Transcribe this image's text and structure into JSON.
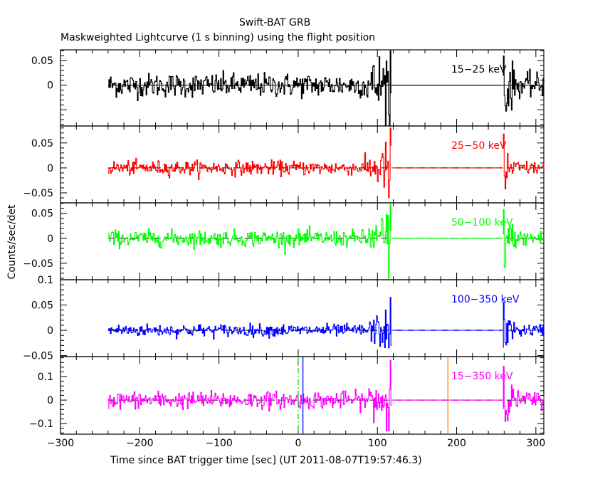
{
  "chart_data": {
    "type": "line",
    "title": "Swift-BAT GRB",
    "subtitle": "Maskweighted Lightcurve (1 s binning) using the flight position",
    "xlabel": "Time since BAT trigger time [sec] (UT 2011-08-07T19:57:46.3)",
    "ylabel": "Counts/sec/det",
    "xlim": [
      -300,
      310
    ],
    "x_ticks": [
      -300,
      -200,
      -100,
      0,
      100,
      200,
      300
    ],
    "x_tick_labels": [
      "−300",
      "−200",
      "−100",
      "0",
      "100",
      "200",
      "300"
    ],
    "grid": false,
    "data_segments": [
      {
        "start": -240,
        "end": 117
      },
      {
        "start": 258,
        "end": 310
      }
    ],
    "binning_sec": 1,
    "panels": [
      {
        "name": "15-25 keV",
        "label": "15−25 keV",
        "color": "#000000",
        "ylim": [
          -0.083,
          0.072
        ],
        "y_ticks": [
          0,
          0.05
        ],
        "y_tick_labels": [
          "0",
          "0.05"
        ],
        "noise_sigma": 0.012,
        "burst_peak": 0.07,
        "burst_min": -0.06
      },
      {
        "name": "25-50 keV",
        "label": "25−50 keV",
        "color": "#ff0000",
        "ylim": [
          -0.07,
          0.084
        ],
        "y_ticks": [
          -0.05,
          0,
          0.05
        ],
        "y_tick_labels": [
          "−0.05",
          "0",
          "0.05"
        ],
        "noise_sigma": 0.007,
        "burst_peak": 0.08,
        "burst_min": -0.06
      },
      {
        "name": "50-100 keV",
        "label": "50−100 keV",
        "color": "#00ff00",
        "ylim": [
          -0.083,
          0.071
        ],
        "y_ticks": [
          -0.05,
          0,
          0.05
        ],
        "y_tick_labels": [
          "−0.05",
          "0",
          "0.05"
        ],
        "noise_sigma": 0.008,
        "burst_peak": 0.068,
        "burst_min": -0.08
      },
      {
        "name": "100-350 keV",
        "label": "100−350 keV",
        "color": "#0000ff",
        "ylim": [
          -0.052,
          0.1
        ],
        "y_ticks": [
          -0.05,
          0,
          0.05,
          0.1
        ],
        "y_tick_labels": [
          "−0.05",
          "0",
          "0.05",
          "0.1"
        ],
        "noise_sigma": 0.006,
        "burst_peak": 0.065,
        "burst_min": -0.035
      },
      {
        "name": "15-350 keV",
        "label": "15−350 keV",
        "color": "#ff00ff",
        "ylim": [
          -0.145,
          0.185
        ],
        "y_ticks": [
          -0.1,
          0,
          0.1
        ],
        "y_tick_labels": [
          "−0.1",
          "0",
          "0.1"
        ],
        "noise_sigma": 0.018,
        "burst_peak": 0.17,
        "burst_min": -0.13
      }
    ],
    "markers": [
      {
        "name": "trigger-time",
        "x": 0,
        "color": "#00dd00",
        "style": "dash-dot"
      },
      {
        "name": "t-start",
        "x": 6,
        "color": "#0000ff",
        "style": "solid"
      },
      {
        "name": "t-end",
        "x": 189,
        "color": "#ff8000",
        "style": "solid"
      }
    ],
    "zero_line": {
      "color": "#000000",
      "style": "dashed"
    }
  }
}
